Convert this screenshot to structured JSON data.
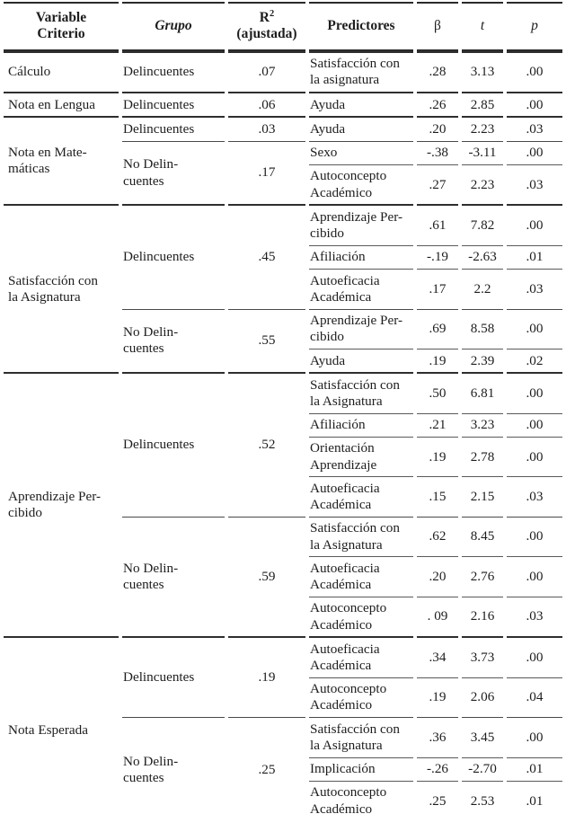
{
  "headers": {
    "variable": "Variable\nCriterio",
    "grupo": "Grupo",
    "r2_base": "R",
    "r2_sup": "2",
    "r2_note": "(ajustada)",
    "predictores": "Predictores",
    "beta": "β",
    "t": "t",
    "p": "p"
  },
  "sections": [
    {
      "criterio": "Cálculo",
      "groups": [
        {
          "grupo": "Delincuentes",
          "r2": ".07",
          "rows": [
            {
              "predictor": "Satisfacción con\nla asignatura",
              "beta": ".28",
              "t": "3.13",
              "p": ".00"
            }
          ]
        }
      ]
    },
    {
      "criterio": "Nota en Lengua",
      "groups": [
        {
          "grupo": "Delincuentes",
          "r2": ".06",
          "rows": [
            {
              "predictor": "Ayuda",
              "beta": ".26",
              "t": "2.85",
              "p": ".00"
            }
          ]
        }
      ]
    },
    {
      "criterio": "Nota en Mate-\nmáticas",
      "groups": [
        {
          "grupo": "Delincuentes",
          "r2": ".03",
          "rows": [
            {
              "predictor": "Ayuda",
              "beta": ".20",
              "t": "2.23",
              "p": ".03"
            }
          ]
        },
        {
          "grupo": "No Delin-\ncuentes",
          "r2": ".17",
          "rows": [
            {
              "predictor": "Sexo",
              "beta": "-.38",
              "t": "-3.11",
              "p": ".00"
            },
            {
              "predictor": "Autoconcepto\nAcadémico",
              "beta": ".27",
              "t": "2.23",
              "p": ".03"
            }
          ]
        }
      ]
    },
    {
      "criterio": "Satisfacción con\nla Asignatura",
      "groups": [
        {
          "grupo": "Delincuentes",
          "r2": ".45",
          "rows": [
            {
              "predictor": "Aprendizaje Per-\ncibido",
              "beta": ".61",
              "t": "7.82",
              "p": ".00"
            },
            {
              "predictor": "Afiliación",
              "beta": "-.19",
              "t": "-2.63",
              "p": ".01"
            },
            {
              "predictor": "Autoeficacia\nAcadémica",
              "beta": ".17",
              "t": "2.2",
              "p": ".03"
            }
          ]
        },
        {
          "grupo": "No Delin-\ncuentes",
          "r2": ".55",
          "rows": [
            {
              "predictor": "Aprendizaje Per-\ncibido",
              "beta": ".69",
              "t": "8.58",
              "p": ".00"
            },
            {
              "predictor": "Ayuda",
              "beta": ".19",
              "t": "2.39",
              "p": ".02"
            }
          ]
        }
      ]
    },
    {
      "criterio": "Aprendizaje Per-\ncibido",
      "groups": [
        {
          "grupo": "Delincuentes",
          "r2": ".52",
          "rows": [
            {
              "predictor": "Satisfacción con\nla Asignatura",
              "beta": ".50",
              "t": "6.81",
              "p": ".00"
            },
            {
              "predictor": "Afiliación",
              "beta": ".21",
              "t": "3.23",
              "p": ".00"
            },
            {
              "predictor": "Orientación\nAprendizaje",
              "beta": ".19",
              "t": "2.78",
              "p": ".00"
            },
            {
              "predictor": "Autoeficacia\nAcadémica",
              "beta": ".15",
              "t": "2.15",
              "p": ".03"
            }
          ]
        },
        {
          "grupo": "No Delin-\ncuentes",
          "r2": ".59",
          "rows": [
            {
              "predictor": "Satisfacción con\nla Asignatura",
              "beta": ".62",
              "t": "8.45",
              "p": ".00"
            },
            {
              "predictor": "Autoeficacia\nAcadémica",
              "beta": ".20",
              "t": "2.76",
              "p": ".00"
            },
            {
              "predictor": "Autoconcepto\nAcadémico",
              "beta": ". 09",
              "t": "2.16",
              "p": ".03"
            }
          ]
        }
      ]
    },
    {
      "criterio": "Nota Esperada",
      "groups": [
        {
          "grupo": "Delincuentes",
          "r2": ".19",
          "rows": [
            {
              "predictor": "Autoeficacia\nAcadémica",
              "beta": ".34",
              "t": "3.73",
              "p": ".00"
            },
            {
              "predictor": "Autoconcepto\nAcadémico",
              "beta": ".19",
              "t": "2.06",
              "p": ".04"
            }
          ]
        },
        {
          "grupo": "No Delin-\ncuentes",
          "r2": ".25",
          "rows": [
            {
              "predictor": "Satisfacción con\nla Asignatura",
              "beta": ".36",
              "t": "3.45",
              "p": ".00"
            },
            {
              "predictor": "Implicación",
              "beta": "-.26",
              "t": "-2.70",
              "p": ".01"
            },
            {
              "predictor": "Autoconcepto\nAcadémico",
              "beta": ".25",
              "t": "2.53",
              "p": ".01"
            }
          ]
        }
      ]
    }
  ]
}
